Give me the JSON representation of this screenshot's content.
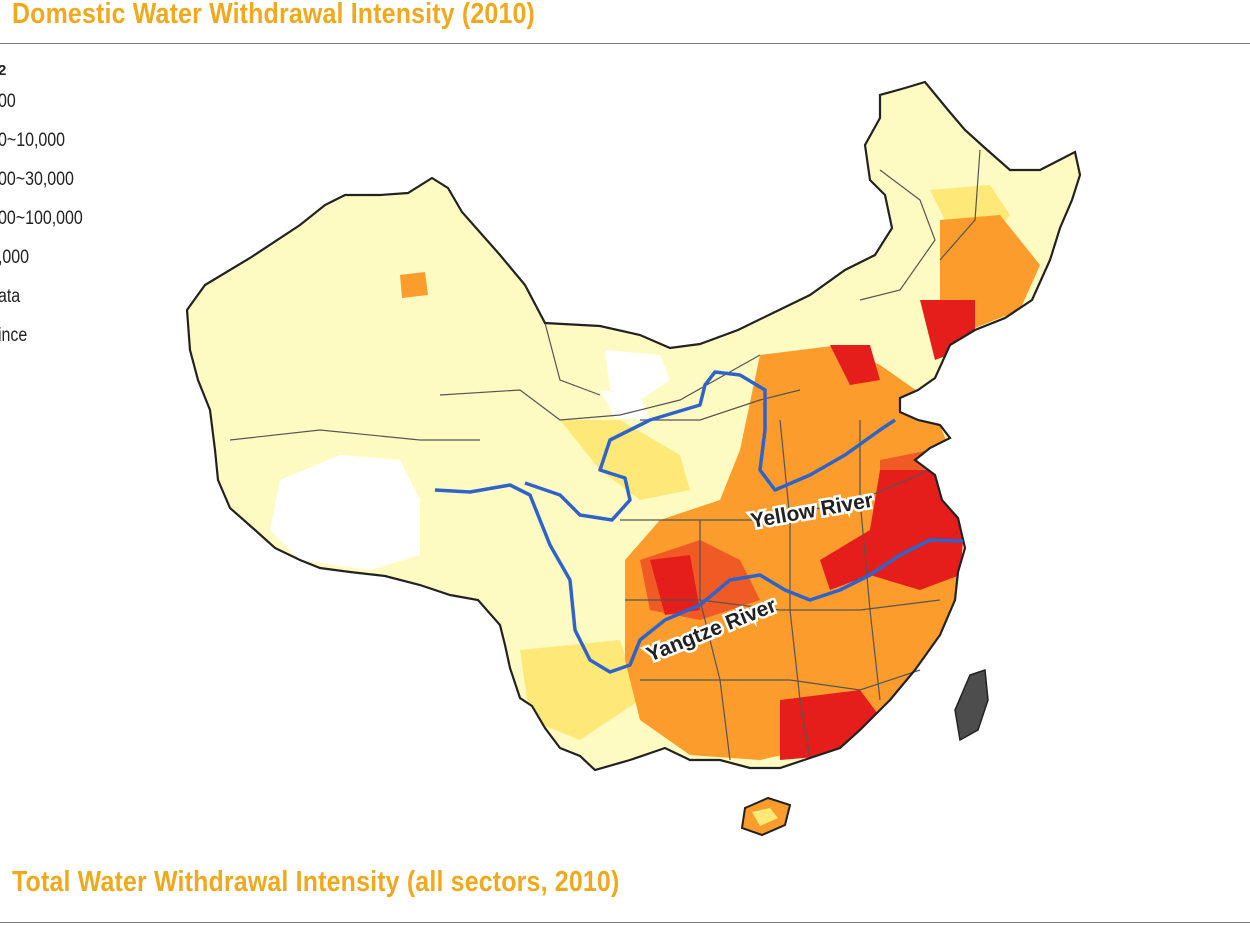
{
  "titles": {
    "top": "Domestic Water Withdrawal Intensity (2010)",
    "bottom": "Total Water Withdrawal Intensity (all sectors, 2010)"
  },
  "legend": {
    "unit_fragment": "2",
    "items": [
      {
        "label": "00",
        "color": "#fefbc2"
      },
      {
        "label": "0~10,000",
        "color": "#fee877"
      },
      {
        "label": "00~30,000",
        "color": "#fb9c2c"
      },
      {
        "label": "00~100,000",
        "color": "#f05a24"
      },
      {
        "label": ",000",
        "color": "#e61e1b"
      },
      {
        "label": "ata",
        "color": "#ffffff"
      },
      {
        "label": "ince",
        "color": "#333333"
      }
    ]
  },
  "map": {
    "river_labels": {
      "yellow": "Yellow River",
      "yangtze": "Yangtze River"
    },
    "colors": {
      "outline": "#222222",
      "river": "#2f63c9",
      "taiwan": "#4d4d4d",
      "province_border": "#555555"
    }
  }
}
